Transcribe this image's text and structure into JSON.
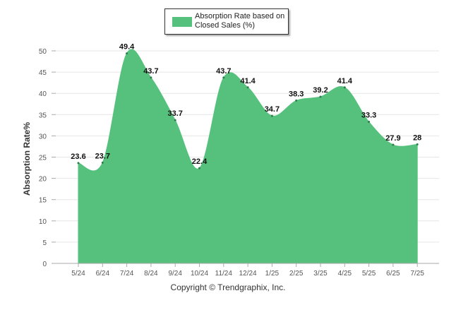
{
  "chart_data": {
    "type": "area",
    "categories": [
      "5/24",
      "6/24",
      "7/24",
      "8/24",
      "9/24",
      "10/24",
      "11/24",
      "12/24",
      "1/25",
      "2/25",
      "3/25",
      "4/25",
      "5/25",
      "6/25",
      "7/25"
    ],
    "series": [
      {
        "name": "Absorption Rate based on Closed Sales (%)",
        "values": [
          23.6,
          23.7,
          49.4,
          43.7,
          33.7,
          22.4,
          43.7,
          41.4,
          34.7,
          38.3,
          39.2,
          41.4,
          33.3,
          27.9,
          28
        ]
      }
    ],
    "data_labels": [
      "23.6",
      "23.7",
      "49.4",
      "43.7",
      "33.7",
      "22.4",
      "43.7",
      "41.4",
      "34.7",
      "38.3",
      "39.2",
      "41.4",
      "33.3",
      "27.9",
      "28"
    ],
    "ylabel": "Absorption Rate%",
    "xlabel": "",
    "ylim": [
      0,
      50
    ],
    "yticks": [
      0,
      5,
      10,
      15,
      20,
      25,
      30,
      35,
      40,
      45,
      50
    ],
    "grid": true,
    "legend_position": "top-center",
    "fill_color": "#55c17c"
  },
  "legend": {
    "label": "Absorption Rate based on Closed Sales (%)"
  },
  "footer": {
    "copyright": "Copyright © Trendgraphix, Inc."
  }
}
